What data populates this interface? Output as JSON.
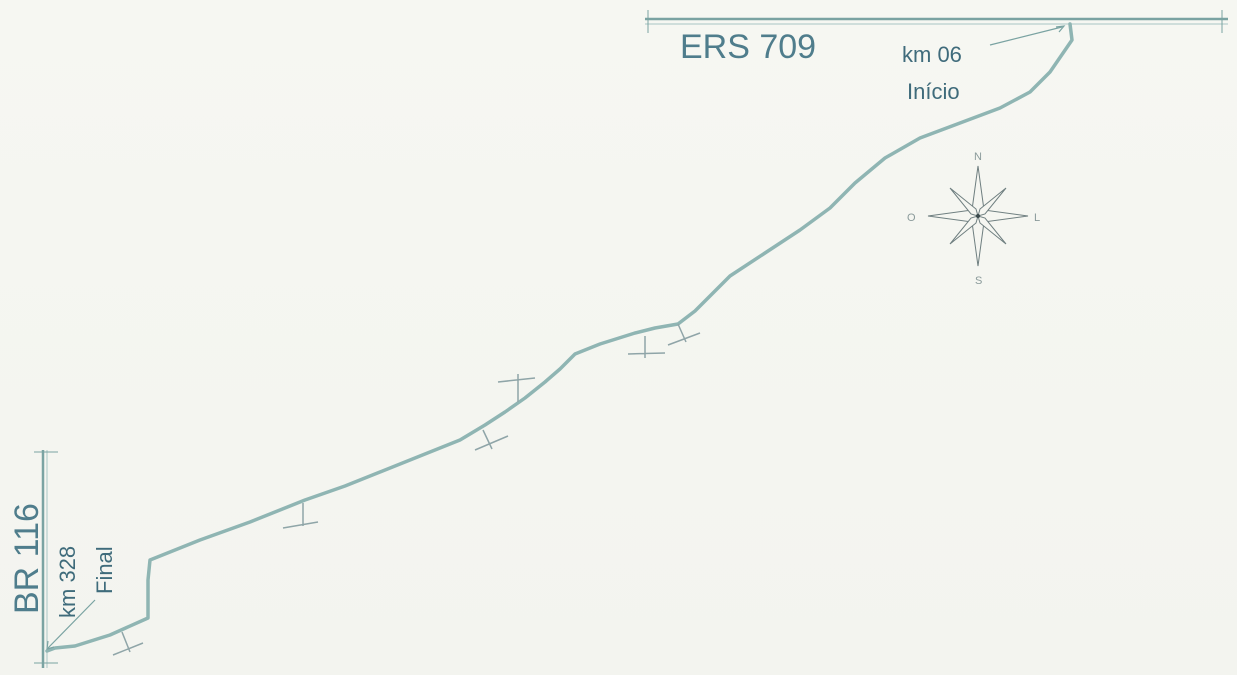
{
  "colors": {
    "road": "#8fb5b3",
    "road_stroke_dark": "#7aa3a2",
    "label": "#4f7d8c",
    "compass": "#6f7f80",
    "background": "#f5f6f1"
  },
  "roads": {
    "top": {
      "name": "ERS 709",
      "km": "km 06",
      "point": "Início"
    },
    "bottom": {
      "name": "BR 116",
      "km": "km 328",
      "point": "Final"
    }
  },
  "compass": {
    "north": "N",
    "south": "S",
    "east": "L",
    "west": "O",
    "icon": "compass-rose-icon"
  }
}
